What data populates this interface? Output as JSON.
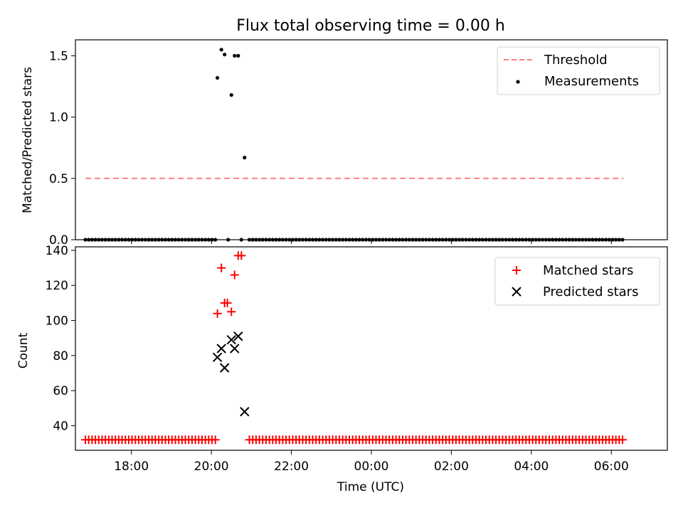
{
  "chart_data": [
    {
      "type": "scatter",
      "title": "Flux total observing time = 0.00 h",
      "xlabel": "",
      "ylabel": "Matched/Predicted stars",
      "ylim": [
        0,
        1.63
      ],
      "yticks": [
        "0.0",
        "0.5",
        "1.0",
        "1.5"
      ],
      "xticks": [
        "18:00",
        "20:00",
        "22:00",
        "00:00",
        "02:00",
        "04:00",
        "06:00"
      ],
      "xlim_hours": [
        16.6,
        31.4
      ],
      "legend_position": "top-right",
      "threshold": {
        "name": "Threshold",
        "value": 0.5,
        "x_start": 16.85,
        "x_end": 30.3,
        "color": "#ff7f7f"
      },
      "measurements": {
        "name": "Measurements",
        "color": "#000000",
        "zero_run_1": {
          "start": 16.85,
          "end": 20.15,
          "step": 0.0833
        },
        "zero_run_2": {
          "start": 20.95,
          "end": 30.3,
          "step": 0.0833
        },
        "points": [
          [
            20.15,
            1.32
          ],
          [
            20.25,
            1.55
          ],
          [
            20.33,
            1.51
          ],
          [
            20.42,
            0.0
          ],
          [
            20.5,
            1.18
          ],
          [
            20.58,
            1.5
          ],
          [
            20.67,
            1.5
          ],
          [
            20.75,
            0.0
          ],
          [
            20.83,
            0.67
          ]
        ]
      }
    },
    {
      "type": "scatter",
      "title": "",
      "xlabel": "Time (UTC)",
      "ylabel": "Count",
      "ylim": [
        26,
        142
      ],
      "yticks": [
        "40",
        "60",
        "80",
        "100",
        "120",
        "140"
      ],
      "xticks": [
        "18:00",
        "20:00",
        "22:00",
        "00:00",
        "02:00",
        "04:00",
        "06:00"
      ],
      "xlim_hours": [
        16.6,
        31.4
      ],
      "legend_position": "top-right",
      "matched": {
        "name": "Matched stars",
        "color": "#ff0000",
        "baseline": 32,
        "points": [
          [
            20.15,
            104
          ],
          [
            20.25,
            130
          ],
          [
            20.33,
            110
          ],
          [
            20.4,
            110
          ],
          [
            20.5,
            105
          ],
          [
            20.58,
            126
          ],
          [
            20.67,
            137
          ],
          [
            20.75,
            137
          ]
        ]
      },
      "predicted": {
        "name": "Predicted stars",
        "color": "#000000",
        "points": [
          [
            20.15,
            79
          ],
          [
            20.25,
            84
          ],
          [
            20.33,
            73
          ],
          [
            20.5,
            89
          ],
          [
            20.58,
            84
          ],
          [
            20.67,
            91
          ],
          [
            20.83,
            48
          ]
        ]
      }
    }
  ]
}
